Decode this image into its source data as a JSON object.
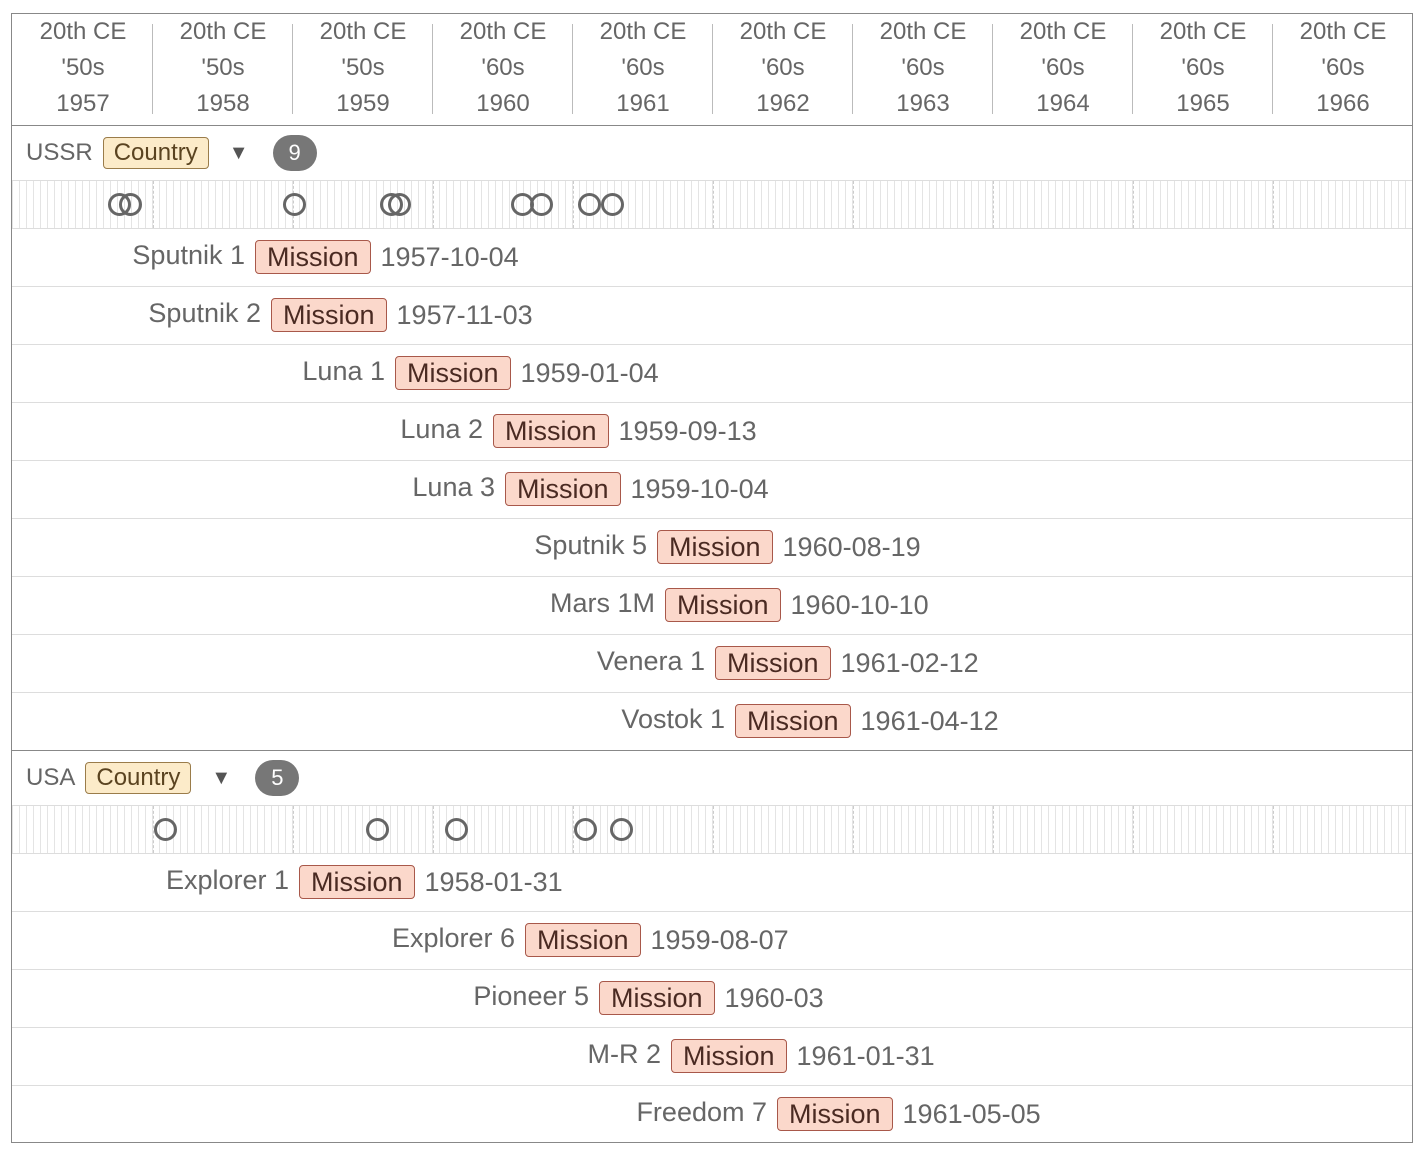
{
  "header": {
    "columns": [
      {
        "century": "20th CE",
        "decade": "'50s",
        "year": "1957"
      },
      {
        "century": "20th CE",
        "decade": "'50s",
        "year": "1958"
      },
      {
        "century": "20th CE",
        "decade": "'50s",
        "year": "1959"
      },
      {
        "century": "20th CE",
        "decade": "'60s",
        "year": "1960"
      },
      {
        "century": "20th CE",
        "decade": "'60s",
        "year": "1961"
      },
      {
        "century": "20th CE",
        "decade": "'60s",
        "year": "1962"
      },
      {
        "century": "20th CE",
        "decade": "'60s",
        "year": "1963"
      },
      {
        "century": "20th CE",
        "decade": "'60s",
        "year": "1964"
      },
      {
        "century": "20th CE",
        "decade": "'60s",
        "year": "1965"
      },
      {
        "century": "20th CE",
        "decade": "'60s",
        "year": "1966"
      }
    ]
  },
  "groups": [
    {
      "name": "USSR",
      "tag": "Country",
      "count": 9,
      "items": [
        {
          "name": "Sputnik 1",
          "tag": "Mission",
          "date": "1957-10-04"
        },
        {
          "name": "Sputnik 2",
          "tag": "Mission",
          "date": "1957-11-03"
        },
        {
          "name": "Luna 1",
          "tag": "Mission",
          "date": "1959-01-04"
        },
        {
          "name": "Luna 2",
          "tag": "Mission",
          "date": "1959-09-13"
        },
        {
          "name": "Luna 3",
          "tag": "Mission",
          "date": "1959-10-04"
        },
        {
          "name": "Sputnik 5",
          "tag": "Mission",
          "date": "1960-08-19"
        },
        {
          "name": "Mars 1M",
          "tag": "Mission",
          "date": "1960-10-10"
        },
        {
          "name": "Venera 1",
          "tag": "Mission",
          "date": "1961-02-12"
        },
        {
          "name": "Vostok 1",
          "tag": "Mission",
          "date": "1961-04-12"
        }
      ]
    },
    {
      "name": "USA",
      "tag": "Country",
      "count": 5,
      "items": [
        {
          "name": "Explorer 1",
          "tag": "Mission",
          "date": "1958-01-31"
        },
        {
          "name": "Explorer 6",
          "tag": "Mission",
          "date": "1959-08-07"
        },
        {
          "name": "Pioneer 5",
          "tag": "Mission",
          "date": "1960-03"
        },
        {
          "name": "M-R 2",
          "tag": "Mission",
          "date": "1961-01-31"
        },
        {
          "name": "Freedom 7",
          "tag": "Mission",
          "date": "1961-05-05"
        }
      ]
    }
  ]
}
